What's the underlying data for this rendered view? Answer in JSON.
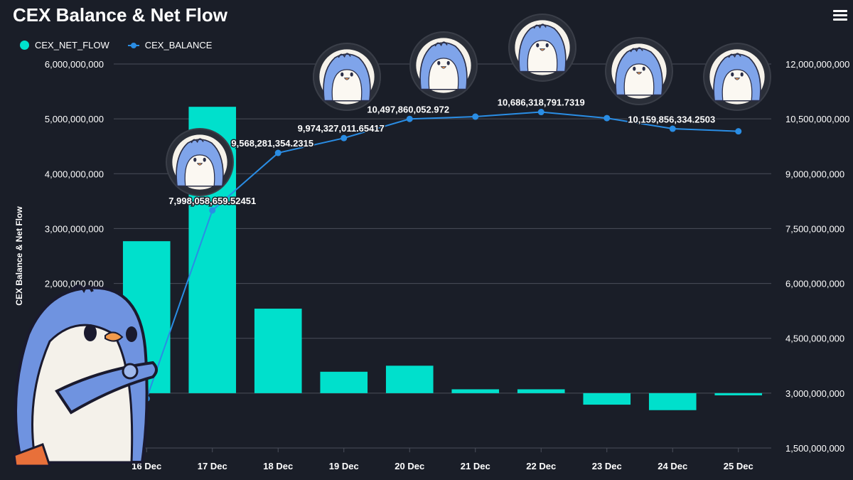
{
  "header": {
    "title": "CEX Balance & Net Flow",
    "menu_icon": "hamburger-menu-icon"
  },
  "colors": {
    "background": "#1a1e28",
    "net_flow": "#00e0cc",
    "balance": "#2a8de4",
    "grid": "#4a4f5a"
  },
  "chart_data": {
    "type": "bar",
    "title": "CEX Balance & Net Flow",
    "ylabel": "CEX Balance & Net Flow",
    "categories": [
      "16 Dec",
      "17 Dec",
      "18 Dec",
      "19 Dec",
      "20 Dec",
      "21 Dec",
      "22 Dec",
      "23 Dec",
      "24 Dec",
      "25 Dec"
    ],
    "legend_position": "top-left",
    "grid": true,
    "series": [
      {
        "name": "CEX_NET_FLOW",
        "type": "bar",
        "axis": "left",
        "values": [
          2770000000,
          5220000000,
          1540000000,
          390000000,
          500000000,
          70000000,
          70000000,
          -210000000,
          -310000000,
          -40000000
        ]
      },
      {
        "name": "CEX_BALANCE",
        "type": "line",
        "axis": "right",
        "values": [
          2850000000,
          7998058659.52451,
          9568281354.2315,
          9974327011.65417,
          10497860052.972,
          10560000000,
          10686318791.7319,
          10520000000,
          10230000000,
          10159856334.2503
        ]
      }
    ],
    "left_axis": {
      "range": [
        -1000000000,
        6000000000
      ],
      "ticks": [
        2000000000,
        3000000000,
        4000000000,
        5000000000,
        6000000000
      ],
      "tick_labels": [
        "2,000,000,000",
        "3,000,000,000",
        "4,000,000,000",
        "5,000,000,000",
        "6,000,000,000"
      ]
    },
    "right_axis": {
      "range": [
        1500000000,
        12000000000
      ],
      "ticks": [
        1500000000,
        3000000000,
        4500000000,
        6000000000,
        7500000000,
        9000000000,
        10500000000,
        12000000000
      ],
      "tick_labels": [
        "1,500,000,000",
        "3,000,000,000",
        "4,500,000,000",
        "6,000,000,000",
        "7,500,000,000",
        "9,000,000,000",
        "10,500,000,000",
        "12,000,000,000"
      ]
    },
    "data_labels": [
      {
        "index": 1,
        "text": "7,998,058,659.52451"
      },
      {
        "index": 2,
        "text": "9,568,281,354.2315"
      },
      {
        "index": 3,
        "text": "9,974,327,011.65417"
      },
      {
        "index": 4,
        "text": "10,497,860,052.972"
      },
      {
        "index": 6,
        "text": "10,686,318,791.7319"
      },
      {
        "index": 9,
        "text": "10,159,856,334.2503"
      }
    ]
  },
  "decorations": {
    "avatar_icon": "penguin-avatar-icon",
    "mascot_icon": "penguin-mascot-icon"
  }
}
